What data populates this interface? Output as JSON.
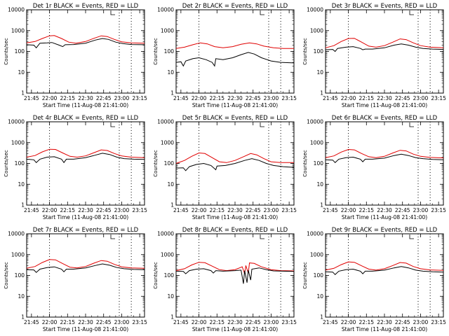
{
  "figure": {
    "x_ticks": [
      "21:45",
      "22:00",
      "22:15",
      "22:30",
      "22:45",
      "23:00",
      "23:15"
    ],
    "x_tick_minutes": [
      1305,
      1320,
      1335,
      1350,
      1365,
      1380,
      1395
    ],
    "y_ticks": [
      "1",
      "10",
      "100",
      "1000",
      "10000"
    ],
    "xlabel": "Start Time (11-Aug-08 21:41:00)",
    "ylabel": "Counts/sec",
    "series_colors": {
      "events": "#000000",
      "lld": "#e00000"
    },
    "vertical_dotted_lines_minutes": [
      1320,
      1378,
      1388
    ]
  },
  "chart_data": [
    {
      "type": "line",
      "title": "Det 1r BLACK = Events, RED = LLD",
      "y_scale": "log",
      "ylim": [
        1,
        10000
      ],
      "xlim_minutes": [
        1301,
        1399
      ],
      "events": [
        [
          1301,
          210
        ],
        [
          1307,
          200
        ],
        [
          1309,
          150
        ],
        [
          1312,
          250
        ],
        [
          1318,
          260
        ],
        [
          1322,
          270
        ],
        [
          1328,
          200
        ],
        [
          1331,
          170
        ],
        [
          1333,
          210
        ],
        [
          1340,
          215
        ],
        [
          1350,
          250
        ],
        [
          1358,
          350
        ],
        [
          1364,
          420
        ],
        [
          1369,
          380
        ],
        [
          1375,
          280
        ],
        [
          1381,
          240
        ],
        [
          1388,
          215
        ],
        [
          1399,
          210
        ]
      ],
      "lld": [
        [
          1301,
          260
        ],
        [
          1308,
          300
        ],
        [
          1314,
          420
        ],
        [
          1320,
          560
        ],
        [
          1324,
          580
        ],
        [
          1330,
          420
        ],
        [
          1336,
          280
        ],
        [
          1342,
          250
        ],
        [
          1350,
          300
        ],
        [
          1357,
          430
        ],
        [
          1363,
          560
        ],
        [
          1368,
          520
        ],
        [
          1374,
          380
        ],
        [
          1380,
          290
        ],
        [
          1388,
          260
        ],
        [
          1399,
          250
        ]
      ]
    },
    {
      "type": "line",
      "title": "Det 2r BLACK = Events, RED = LLD",
      "y_scale": "log",
      "ylim": [
        1,
        10000
      ],
      "xlim_minutes": [
        1301,
        1399
      ],
      "events": [
        [
          1301,
          30
        ],
        [
          1305,
          32
        ],
        [
          1307,
          20
        ],
        [
          1309,
          35
        ],
        [
          1315,
          45
        ],
        [
          1320,
          50
        ],
        [
          1326,
          40
        ],
        [
          1331,
          30
        ],
        [
          1333,
          20
        ],
        [
          1334,
          45
        ],
        [
          1340,
          40
        ],
        [
          1348,
          50
        ],
        [
          1355,
          70
        ],
        [
          1361,
          90
        ],
        [
          1366,
          75
        ],
        [
          1372,
          50
        ],
        [
          1380,
          35
        ],
        [
          1388,
          30
        ],
        [
          1399,
          28
        ]
      ],
      "lld": [
        [
          1301,
          140
        ],
        [
          1308,
          160
        ],
        [
          1315,
          210
        ],
        [
          1321,
          260
        ],
        [
          1327,
          230
        ],
        [
          1333,
          170
        ],
        [
          1340,
          150
        ],
        [
          1348,
          170
        ],
        [
          1355,
          220
        ],
        [
          1362,
          260
        ],
        [
          1368,
          230
        ],
        [
          1374,
          180
        ],
        [
          1382,
          150
        ],
        [
          1390,
          140
        ],
        [
          1399,
          140
        ]
      ]
    },
    {
      "type": "line",
      "title": "Det 3r BLACK = Events, RED = LLD",
      "y_scale": "log",
      "ylim": [
        1,
        10000
      ],
      "xlim_minutes": [
        1301,
        1399
      ],
      "events": [
        [
          1301,
          120
        ],
        [
          1307,
          125
        ],
        [
          1309,
          100
        ],
        [
          1311,
          140
        ],
        [
          1318,
          160
        ],
        [
          1324,
          170
        ],
        [
          1330,
          140
        ],
        [
          1332,
          120
        ],
        [
          1334,
          130
        ],
        [
          1340,
          130
        ],
        [
          1350,
          150
        ],
        [
          1358,
          200
        ],
        [
          1364,
          230
        ],
        [
          1370,
          200
        ],
        [
          1376,
          160
        ],
        [
          1382,
          140
        ],
        [
          1390,
          130
        ],
        [
          1399,
          125
        ]
      ],
      "lld": [
        [
          1301,
          150
        ],
        [
          1308,
          190
        ],
        [
          1314,
          300
        ],
        [
          1320,
          420
        ],
        [
          1325,
          430
        ],
        [
          1331,
          280
        ],
        [
          1337,
          180
        ],
        [
          1343,
          160
        ],
        [
          1350,
          190
        ],
        [
          1357,
          280
        ],
        [
          1363,
          400
        ],
        [
          1368,
          370
        ],
        [
          1374,
          260
        ],
        [
          1380,
          190
        ],
        [
          1388,
          160
        ],
        [
          1399,
          150
        ]
      ]
    },
    {
      "type": "line",
      "title": "Det 4r BLACK = Events, RED = LLD",
      "y_scale": "log",
      "ylim": [
        1,
        10000
      ],
      "xlim_minutes": [
        1301,
        1399
      ],
      "events": [
        [
          1301,
          160
        ],
        [
          1307,
          150
        ],
        [
          1309,
          110
        ],
        [
          1312,
          160
        ],
        [
          1318,
          200
        ],
        [
          1324,
          210
        ],
        [
          1330,
          160
        ],
        [
          1332,
          110
        ],
        [
          1334,
          160
        ],
        [
          1340,
          160
        ],
        [
          1350,
          190
        ],
        [
          1358,
          250
        ],
        [
          1364,
          310
        ],
        [
          1370,
          270
        ],
        [
          1376,
          200
        ],
        [
          1382,
          170
        ],
        [
          1390,
          160
        ],
        [
          1399,
          155
        ]
      ],
      "lld": [
        [
          1301,
          200
        ],
        [
          1308,
          240
        ],
        [
          1314,
          360
        ],
        [
          1320,
          480
        ],
        [
          1325,
          470
        ],
        [
          1331,
          320
        ],
        [
          1337,
          220
        ],
        [
          1343,
          200
        ],
        [
          1350,
          230
        ],
        [
          1357,
          330
        ],
        [
          1363,
          450
        ],
        [
          1368,
          420
        ],
        [
          1374,
          300
        ],
        [
          1380,
          230
        ],
        [
          1388,
          200
        ],
        [
          1399,
          190
        ]
      ]
    },
    {
      "type": "line",
      "title": "Det 5r BLACK = Events, RED = LLD",
      "y_scale": "log",
      "ylim": [
        1,
        10000
      ],
      "xlim_minutes": [
        1301,
        1399
      ],
      "events": [
        [
          1301,
          60
        ],
        [
          1307,
          62
        ],
        [
          1309,
          45
        ],
        [
          1312,
          70
        ],
        [
          1318,
          90
        ],
        [
          1324,
          100
        ],
        [
          1330,
          80
        ],
        [
          1334,
          50
        ],
        [
          1335,
          75
        ],
        [
          1342,
          80
        ],
        [
          1350,
          100
        ],
        [
          1358,
          140
        ],
        [
          1364,
          170
        ],
        [
          1370,
          140
        ],
        [
          1376,
          100
        ],
        [
          1382,
          80
        ],
        [
          1390,
          70
        ],
        [
          1399,
          65
        ]
      ],
      "lld": [
        [
          1301,
          100
        ],
        [
          1308,
          140
        ],
        [
          1314,
          220
        ],
        [
          1320,
          320
        ],
        [
          1325,
          300
        ],
        [
          1331,
          190
        ],
        [
          1337,
          120
        ],
        [
          1343,
          110
        ],
        [
          1350,
          140
        ],
        [
          1357,
          210
        ],
        [
          1363,
          300
        ],
        [
          1368,
          260
        ],
        [
          1374,
          170
        ],
        [
          1380,
          120
        ],
        [
          1388,
          110
        ],
        [
          1399,
          110
        ]
      ]
    },
    {
      "type": "line",
      "title": "Det 6r BLACK = Events, RED = LLD",
      "y_scale": "log",
      "ylim": [
        1,
        10000
      ],
      "xlim_minutes": [
        1301,
        1399
      ],
      "events": [
        [
          1301,
          150
        ],
        [
          1307,
          145
        ],
        [
          1309,
          110
        ],
        [
          1312,
          160
        ],
        [
          1318,
          190
        ],
        [
          1324,
          200
        ],
        [
          1330,
          160
        ],
        [
          1332,
          120
        ],
        [
          1334,
          160
        ],
        [
          1340,
          160
        ],
        [
          1350,
          180
        ],
        [
          1358,
          240
        ],
        [
          1364,
          280
        ],
        [
          1370,
          240
        ],
        [
          1376,
          190
        ],
        [
          1382,
          170
        ],
        [
          1390,
          155
        ],
        [
          1399,
          150
        ]
      ],
      "lld": [
        [
          1301,
          190
        ],
        [
          1308,
          230
        ],
        [
          1314,
          350
        ],
        [
          1320,
          470
        ],
        [
          1325,
          450
        ],
        [
          1331,
          300
        ],
        [
          1337,
          210
        ],
        [
          1343,
          190
        ],
        [
          1350,
          220
        ],
        [
          1357,
          320
        ],
        [
          1363,
          430
        ],
        [
          1368,
          400
        ],
        [
          1374,
          280
        ],
        [
          1380,
          220
        ],
        [
          1388,
          195
        ],
        [
          1399,
          185
        ]
      ]
    },
    {
      "type": "line",
      "title": "Det 7r BLACK = Events, RED = LLD",
      "y_scale": "log",
      "ylim": [
        1,
        10000
      ],
      "xlim_minutes": [
        1301,
        1399
      ],
      "events": [
        [
          1301,
          190
        ],
        [
          1307,
          185
        ],
        [
          1309,
          140
        ],
        [
          1312,
          200
        ],
        [
          1318,
          240
        ],
        [
          1324,
          260
        ],
        [
          1330,
          200
        ],
        [
          1332,
          150
        ],
        [
          1334,
          200
        ],
        [
          1340,
          200
        ],
        [
          1350,
          230
        ],
        [
          1358,
          300
        ],
        [
          1364,
          360
        ],
        [
          1370,
          310
        ],
        [
          1376,
          240
        ],
        [
          1382,
          210
        ],
        [
          1390,
          195
        ],
        [
          1399,
          190
        ]
      ],
      "lld": [
        [
          1301,
          220
        ],
        [
          1308,
          270
        ],
        [
          1314,
          420
        ],
        [
          1320,
          580
        ],
        [
          1325,
          560
        ],
        [
          1331,
          370
        ],
        [
          1337,
          250
        ],
        [
          1343,
          230
        ],
        [
          1350,
          270
        ],
        [
          1357,
          390
        ],
        [
          1363,
          520
        ],
        [
          1368,
          480
        ],
        [
          1374,
          340
        ],
        [
          1380,
          260
        ],
        [
          1388,
          230
        ],
        [
          1399,
          220
        ]
      ]
    },
    {
      "type": "line",
      "title": "Det 8r BLACK = Events, RED = LLD",
      "y_scale": "log",
      "ylim": [
        1,
        10000
      ],
      "xlim_minutes": [
        1301,
        1399
      ],
      "events": [
        [
          1301,
          160
        ],
        [
          1307,
          155
        ],
        [
          1309,
          120
        ],
        [
          1312,
          170
        ],
        [
          1318,
          200
        ],
        [
          1324,
          210
        ],
        [
          1330,
          170
        ],
        [
          1332,
          130
        ],
        [
          1334,
          170
        ],
        [
          1340,
          160
        ],
        [
          1350,
          170
        ],
        [
          1355,
          180
        ],
        [
          1357,
          40
        ],
        [
          1358,
          170
        ],
        [
          1360,
          45
        ],
        [
          1361,
          180
        ],
        [
          1363,
          60
        ],
        [
          1364,
          200
        ],
        [
          1370,
          230
        ],
        [
          1376,
          190
        ],
        [
          1382,
          165
        ],
        [
          1390,
          160
        ],
        [
          1399,
          155
        ]
      ],
      "lld": [
        [
          1301,
          170
        ],
        [
          1308,
          210
        ],
        [
          1314,
          320
        ],
        [
          1320,
          430
        ],
        [
          1325,
          410
        ],
        [
          1331,
          280
        ],
        [
          1337,
          190
        ],
        [
          1343,
          170
        ],
        [
          1350,
          190
        ],
        [
          1356,
          260
        ],
        [
          1358,
          120
        ],
        [
          1359,
          300
        ],
        [
          1361,
          130
        ],
        [
          1362,
          400
        ],
        [
          1366,
          380
        ],
        [
          1372,
          260
        ],
        [
          1380,
          190
        ],
        [
          1388,
          170
        ],
        [
          1399,
          165
        ]
      ]
    },
    {
      "type": "line",
      "title": "Det 9r BLACK = Events, RED = LLD",
      "y_scale": "log",
      "ylim": [
        1,
        10000
      ],
      "xlim_minutes": [
        1301,
        1399
      ],
      "events": [
        [
          1301,
          150
        ],
        [
          1307,
          145
        ],
        [
          1309,
          110
        ],
        [
          1312,
          160
        ],
        [
          1318,
          190
        ],
        [
          1324,
          200
        ],
        [
          1330,
          160
        ],
        [
          1332,
          120
        ],
        [
          1334,
          160
        ],
        [
          1340,
          160
        ],
        [
          1350,
          180
        ],
        [
          1358,
          230
        ],
        [
          1364,
          270
        ],
        [
          1370,
          230
        ],
        [
          1376,
          180
        ],
        [
          1382,
          160
        ],
        [
          1390,
          150
        ],
        [
          1399,
          145
        ]
      ],
      "lld": [
        [
          1301,
          180
        ],
        [
          1308,
          220
        ],
        [
          1314,
          330
        ],
        [
          1320,
          450
        ],
        [
          1325,
          430
        ],
        [
          1331,
          290
        ],
        [
          1337,
          200
        ],
        [
          1343,
          180
        ],
        [
          1350,
          210
        ],
        [
          1357,
          300
        ],
        [
          1363,
          420
        ],
        [
          1368,
          390
        ],
        [
          1374,
          270
        ],
        [
          1380,
          210
        ],
        [
          1388,
          185
        ],
        [
          1399,
          175
        ]
      ]
    }
  ]
}
